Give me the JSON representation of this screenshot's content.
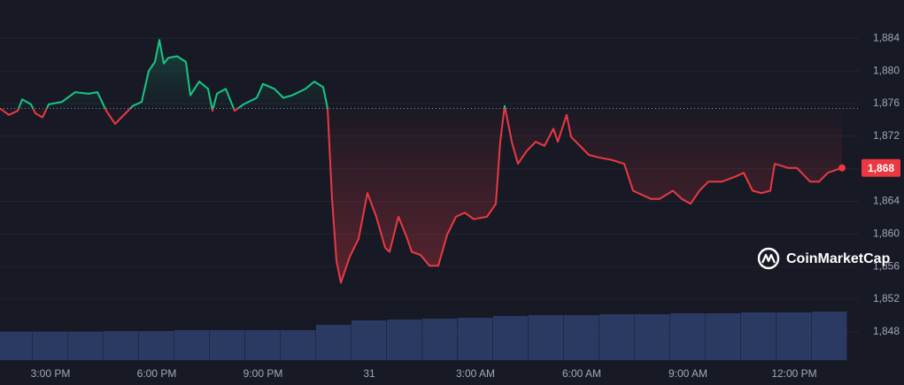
{
  "chart_data": {
    "type": "line",
    "x": [
      13.575,
      13.825,
      14.075,
      14.2,
      14.45,
      14.575,
      14.775,
      14.95,
      15.325,
      15.7,
      16.075,
      16.325,
      16.575,
      16.825,
      17.075,
      17.325,
      17.575,
      17.775,
      17.95,
      18.075,
      18.2,
      18.325,
      18.575,
      18.825,
      18.95,
      19.2,
      19.45,
      19.575,
      19.7,
      19.95,
      20.2,
      20.45,
      20.825,
      21,
      21.325,
      21.575,
      21.825,
      22.2,
      22.45,
      22.7,
      22.825,
      22.95,
      23.075,
      23.2,
      23.45,
      23.7,
      23.95,
      24.2,
      24.45,
      24.575,
      24.825,
      25.075,
      25.2,
      25.45,
      25.7,
      25.95,
      26.2,
      26.45,
      26.7,
      26.95,
      27.325,
      27.575,
      27.7,
      27.825,
      28.025,
      28.2,
      28.45,
      28.7,
      28.95,
      29.2,
      29.325,
      29.575,
      29.7,
      29.95,
      30.2,
      30.45,
      30.825,
      31.2,
      31.45,
      31.7,
      31.95,
      32.2,
      32.575,
      32.825,
      33.075,
      33.325,
      33.575,
      33.95,
      34.325,
      34.575,
      34.825,
      35.075,
      35.325,
      35.45,
      35.825,
      36.075,
      36.45,
      36.7,
      36.95,
      37.35
    ],
    "values": [
      1875.4,
      1874.6,
      1875.1,
      1876.5,
      1875.9,
      1874.8,
      1874.3,
      1875.9,
      1876.2,
      1877.4,
      1877.2,
      1877.4,
      1875.1,
      1873.5,
      1874.6,
      1875.7,
      1876.2,
      1880.0,
      1881.1,
      1883.8,
      1880.9,
      1881.6,
      1881.8,
      1881.1,
      1877.0,
      1878.7,
      1877.8,
      1875.1,
      1877.2,
      1877.8,
      1875.1,
      1875.9,
      1876.7,
      1878.4,
      1877.8,
      1876.7,
      1877.0,
      1877.8,
      1878.7,
      1878.0,
      1875.4,
      1864.3,
      1856.7,
      1854.0,
      1857.2,
      1859.4,
      1865.0,
      1862.1,
      1858.3,
      1857.8,
      1862.1,
      1859.4,
      1857.8,
      1857.4,
      1856.1,
      1856.1,
      1859.9,
      1862.1,
      1862.6,
      1861.8,
      1862.1,
      1863.7,
      1871.3,
      1875.7,
      1871.3,
      1868.6,
      1870.2,
      1871.3,
      1870.8,
      1872.9,
      1871.3,
      1874.6,
      1871.9,
      1870.8,
      1869.7,
      1869.4,
      1869.1,
      1868.6,
      1865.3,
      1864.8,
      1864.3,
      1864.3,
      1865.3,
      1864.3,
      1863.7,
      1865.3,
      1866.4,
      1866.4,
      1867.0,
      1867.5,
      1865.3,
      1865.0,
      1865.3,
      1868.6,
      1868.1,
      1868.1,
      1866.4,
      1866.4,
      1867.5,
      1868.1
    ],
    "baseline": 1875.4,
    "color_above": "#16c784",
    "color_below": "#ea3943",
    "current_price": {
      "value": 1868.1,
      "label": "1,868"
    },
    "xlim": [
      13.575,
      37.825
    ],
    "xticks": [
      {
        "value": 15,
        "label": "3:00 PM"
      },
      {
        "value": 18,
        "label": "6:00 PM"
      },
      {
        "value": 21,
        "label": "9:00 PM"
      },
      {
        "value": 24,
        "label": "31"
      },
      {
        "value": 27,
        "label": "3:00 AM"
      },
      {
        "value": 30,
        "label": "6:00 AM"
      },
      {
        "value": 33,
        "label": "9:00 AM"
      },
      {
        "value": 36,
        "label": "12:00 PM"
      }
    ],
    "ylim": [
      1844.5,
      1888.7
    ],
    "yticks": [
      {
        "value": 1848,
        "label": "1,848"
      },
      {
        "value": 1852,
        "label": "1,852"
      },
      {
        "value": 1856,
        "label": "1,856"
      },
      {
        "value": 1860,
        "label": "1,860"
      },
      {
        "value": 1864,
        "label": "1,864"
      },
      {
        "value": 1868,
        "label": "1,868"
      },
      {
        "value": 1872,
        "label": "1,872"
      },
      {
        "value": 1876,
        "label": "1,876"
      },
      {
        "value": 1880,
        "label": "1,880"
      },
      {
        "value": 1884,
        "label": "1,884"
      }
    ],
    "grid": true,
    "volume": {
      "x": [
        14,
        15,
        16,
        17,
        18,
        19,
        20,
        21,
        22,
        23,
        24,
        25,
        26,
        27,
        28,
        29,
        30,
        31,
        32,
        33,
        34,
        35,
        36,
        37
      ],
      "values": [
        32,
        32,
        32,
        33,
        33,
        34,
        34,
        34,
        34,
        40,
        45,
        46,
        47,
        48,
        50,
        51,
        51,
        52,
        52,
        53,
        53,
        54,
        54,
        55
      ],
      "color": "#2b3a63"
    },
    "watermark": "CoinMarketCap"
  }
}
